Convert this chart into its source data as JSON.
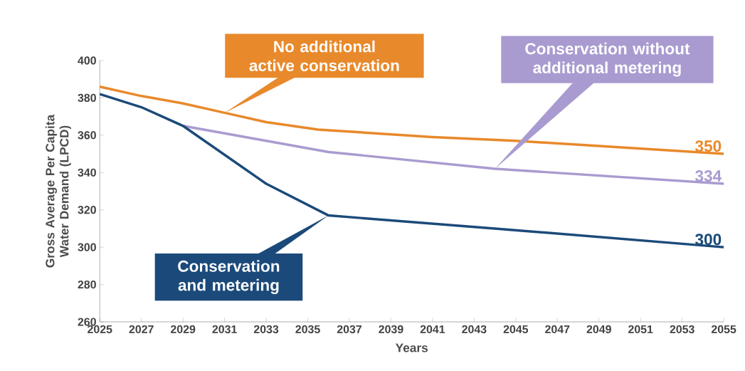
{
  "chart_data": {
    "type": "line",
    "xlabel": "Years",
    "ylabel": "Gross Average Per Capita Water Demand (LPCD)",
    "xlim": [
      2025,
      2055
    ],
    "xticks": [
      2025,
      2027,
      2029,
      2031,
      2033,
      2035,
      2037,
      2039,
      2041,
      2043,
      2045,
      2047,
      2049,
      2051,
      2053,
      2055
    ],
    "ylim": [
      260,
      400
    ],
    "yticks": [
      260,
      280,
      300,
      320,
      340,
      360,
      380,
      400
    ],
    "grid": false,
    "marker": "none",
    "line_style": "solid",
    "series": [
      {
        "name": "No additional active conservation",
        "color": "#e8892b",
        "x": [
          2025,
          2027,
          2029,
          2031,
          2033,
          2035.5,
          2041,
          2045,
          2055
        ],
        "values": [
          386,
          381,
          377,
          372,
          367,
          363,
          359,
          357,
          350
        ],
        "value_labels": [
          null,
          null,
          null,
          null,
          null,
          null,
          null,
          null,
          "350"
        ]
      },
      {
        "name": "Conservation without additional metering",
        "color": "#a99bd0",
        "x": [
          2029,
          2036,
          2044,
          2055
        ],
        "values": [
          365,
          351,
          342,
          334
        ],
        "value_labels": [
          null,
          null,
          null,
          "334"
        ]
      },
      {
        "name": "Conservation and metering",
        "color": "#1b4a7a",
        "x": [
          2025,
          2027,
          2028,
          2029,
          2033,
          2036,
          2044,
          2055
        ],
        "values": [
          382,
          375,
          370,
          365,
          334,
          317,
          310,
          300
        ],
        "value_labels": [
          null,
          null,
          null,
          null,
          null,
          null,
          null,
          "300"
        ]
      }
    ]
  }
}
